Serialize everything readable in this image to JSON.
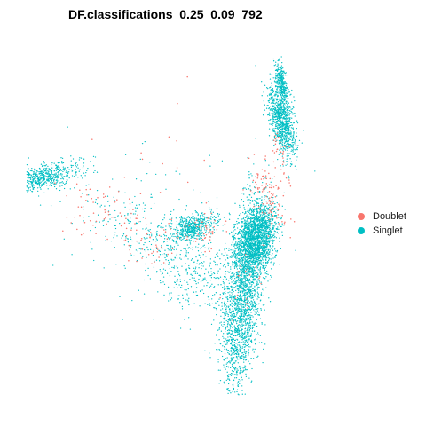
{
  "chart_data": {
    "type": "scatter",
    "title": "DF.classifications_0.25_0.09_792",
    "xlabel": "",
    "ylabel": "",
    "axes_visible": false,
    "grid": false,
    "legend_position": "right",
    "colors": {
      "Doublet": "#F8766D",
      "Singlet": "#00BFC4"
    },
    "series": [
      {
        "name": "Singlet",
        "clusters": [
          {
            "label": "",
            "center": [
              0.05,
              0.37
            ],
            "spread": [
              0.065,
              0.018
            ],
            "rot": -0.18,
            "n": 650
          },
          {
            "label": "",
            "center": [
              0.835,
              0.21
            ],
            "spread": [
              0.018,
              0.055
            ],
            "rot": -0.25,
            "n": 900
          },
          {
            "label": "",
            "center": [
              0.833,
              0.1
            ],
            "spread": [
              0.008,
              0.03
            ],
            "rot": -0.2,
            "n": 300
          },
          {
            "label": "",
            "center": [
              0.545,
              0.515
            ],
            "spread": [
              0.04,
              0.018
            ],
            "rot": -0.3,
            "n": 500
          },
          {
            "label": "",
            "center": [
              0.75,
              0.545
            ],
            "spread": [
              0.03,
              0.05
            ],
            "rot": 0.25,
            "n": 1900
          },
          {
            "label": "",
            "center": [
              0.705,
              0.735
            ],
            "spread": [
              0.03,
              0.13
            ],
            "rot": 0.12,
            "n": 1900
          },
          {
            "label": "",
            "center": [
              0.4,
              0.54
            ],
            "spread": [
              0.12,
              0.05
            ],
            "rot": 0.35,
            "n": 250
          },
          {
            "label": "",
            "center": [
              0.55,
              0.64
            ],
            "spread": [
              0.09,
              0.06
            ],
            "rot": 0.3,
            "n": 350
          },
          {
            "label": "",
            "center": [
              0.45,
              0.52
            ],
            "spread": [
              0.2,
              0.15
            ],
            "rot": 0.0,
            "n": 80
          }
        ]
      },
      {
        "name": "Doublet",
        "clusters": [
          {
            "label": "",
            "center": [
              0.25,
              0.47
            ],
            "spread": [
              0.08,
              0.04
            ],
            "rot": 0.35,
            "n": 55
          },
          {
            "label": "",
            "center": [
              0.39,
              0.56
            ],
            "spread": [
              0.05,
              0.04
            ],
            "rot": 0.3,
            "n": 45
          },
          {
            "label": "",
            "center": [
              0.58,
              0.52
            ],
            "spread": [
              0.045,
              0.02
            ],
            "rot": -0.3,
            "n": 45
          },
          {
            "label": "",
            "center": [
              0.79,
              0.41
            ],
            "spread": [
              0.025,
              0.06
            ],
            "rot": -0.3,
            "n": 100
          },
          {
            "label": "",
            "center": [
              0.83,
              0.3
            ],
            "spread": [
              0.012,
              0.04
            ],
            "rot": -0.2,
            "n": 30
          },
          {
            "label": "",
            "center": [
              0.72,
              0.64
            ],
            "spread": [
              0.03,
              0.05
            ],
            "rot": 0.1,
            "n": 25
          },
          {
            "label": "",
            "center": [
              0.45,
              0.4
            ],
            "spread": [
              0.25,
              0.14
            ],
            "rot": 0.0,
            "n": 30
          }
        ]
      }
    ]
  },
  "legend": {
    "items": [
      {
        "label": "Doublet",
        "color": "#F8766D"
      },
      {
        "label": "Singlet",
        "color": "#00BFC4"
      }
    ]
  }
}
